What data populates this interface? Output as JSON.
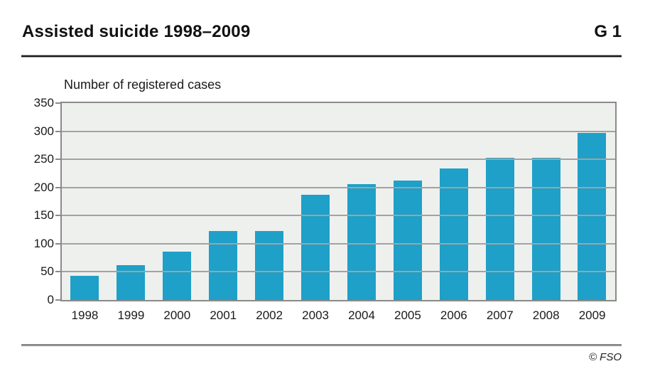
{
  "header": {
    "title": "Assisted suicide 1998–2009",
    "figure_label": "G 1"
  },
  "chart": {
    "note": "Number of registered cases"
  },
  "chart_data": {
    "type": "bar",
    "title": "Assisted suicide 1998–2009",
    "subtitle": "Number of registered cases",
    "categories": [
      "1998",
      "1999",
      "2000",
      "2001",
      "2002",
      "2003",
      "2004",
      "2005",
      "2006",
      "2007",
      "2008",
      "2009"
    ],
    "values": [
      43,
      62,
      86,
      123,
      123,
      187,
      206,
      212,
      234,
      253,
      253,
      297
    ],
    "xlabel": "",
    "ylabel": "Number of registered cases",
    "ylim": [
      0,
      350
    ],
    "y_ticks": [
      0,
      50,
      100,
      150,
      200,
      250,
      300,
      350
    ],
    "grid": "horizontal-on",
    "legend": "none",
    "bar_color": "#1ea0c8",
    "plot_background": "#eef0ee"
  },
  "footer": {
    "source": "© FSO"
  }
}
